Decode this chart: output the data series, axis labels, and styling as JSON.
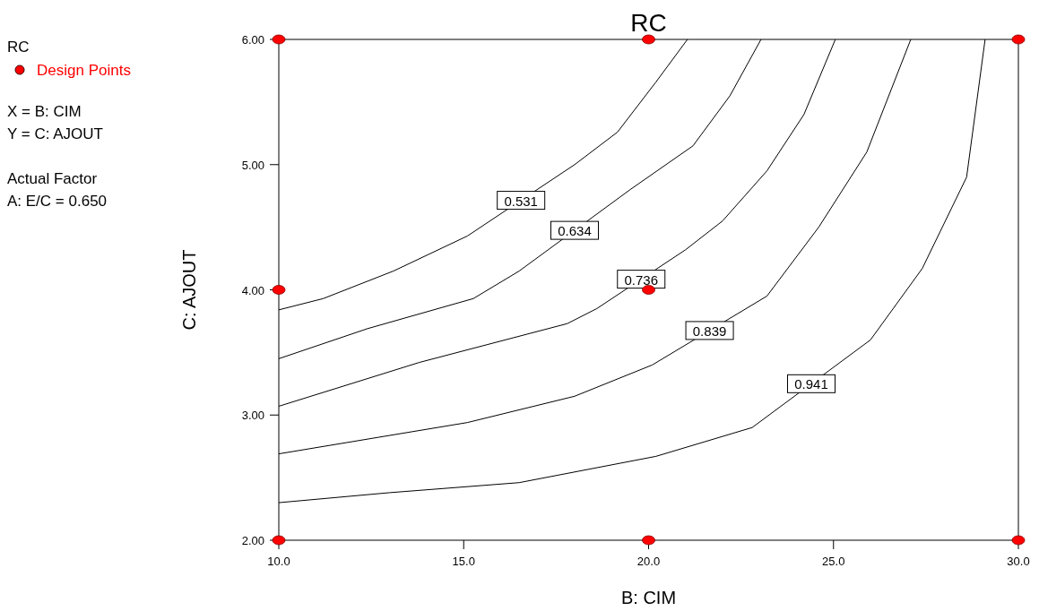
{
  "chart_data": {
    "type": "line",
    "title": "RC",
    "xlabel": "B: CIM",
    "ylabel": "C: AJOUT",
    "legend_title": "RC",
    "legend": "left",
    "grid": false,
    "xlim": [
      10,
      30
    ],
    "ylim": [
      2,
      6
    ],
    "xticks": [
      {
        "value": 10,
        "label": "10.0"
      },
      {
        "value": 15,
        "label": "15.0"
      },
      {
        "value": 20,
        "label": "20.0"
      },
      {
        "value": 25,
        "label": "25.0"
      },
      {
        "value": 30,
        "label": "30.0"
      }
    ],
    "yticks": [
      {
        "value": 2,
        "label": "2.00"
      },
      {
        "value": 3,
        "label": "3.00"
      },
      {
        "value": 4,
        "label": "4.00"
      },
      {
        "value": 5,
        "label": "5.00"
      },
      {
        "value": 6,
        "label": "6.00"
      }
    ],
    "series": [
      {
        "name": "0.531",
        "color": "#000000",
        "marker": "none",
        "line_style": "solid",
        "x": [
          10,
          11.2,
          13.1,
          15.1,
          18,
          19.16,
          20.2,
          21.05
        ],
        "values": [
          3.84,
          3.93,
          4.15,
          4.43,
          5.0,
          5.26,
          5.66,
          6
        ]
      },
      {
        "name": "0.634",
        "color": "#000000",
        "marker": "none",
        "line_style": "solid",
        "x": [
          10,
          12.4,
          15.26,
          16.5,
          19.5,
          21.2,
          22.2,
          23.04
        ],
        "values": [
          3.45,
          3.69,
          3.93,
          4.15,
          4.8,
          5.15,
          5.55,
          6
        ]
      },
      {
        "name": "0.736",
        "color": "#000000",
        "marker": "none",
        "line_style": "solid",
        "x": [
          10,
          13.8,
          17.8,
          18.6,
          21.0,
          22,
          23.2,
          24.2,
          25.05
        ],
        "values": [
          3.07,
          3.42,
          3.73,
          3.85,
          4.32,
          4.55,
          4.95,
          5.4,
          6
        ]
      },
      {
        "name": "0.839",
        "color": "#000000",
        "marker": "none",
        "line_style": "solid",
        "x": [
          10,
          15.1,
          18,
          20.1,
          23.2,
          24.6,
          25.9,
          27.09
        ],
        "values": [
          2.69,
          2.94,
          3.15,
          3.4,
          3.95,
          4.5,
          5.1,
          6
        ]
      },
      {
        "name": "0.941",
        "color": "#000000",
        "marker": "none",
        "line_style": "solid",
        "x": [
          10,
          13,
          16.5,
          20.2,
          22.8,
          26,
          27.4,
          28.6,
          29.1
        ],
        "values": [
          2.3,
          2.38,
          2.46,
          2.67,
          2.9,
          3.6,
          4.17,
          4.9,
          6
        ]
      },
      {
        "type": "scatter",
        "name": "Design Points",
        "color": "#ff0000",
        "marker": "circle",
        "x": [
          10,
          20,
          30,
          10,
          20,
          10,
          20,
          30
        ],
        "values": [
          6,
          6,
          6,
          4,
          4,
          2,
          2,
          2
        ]
      }
    ],
    "annotations": [
      "X = B: CIM",
      "Y = C: AJOUT",
      "Actual Factor",
      "A: E/C = 0.650"
    ]
  }
}
